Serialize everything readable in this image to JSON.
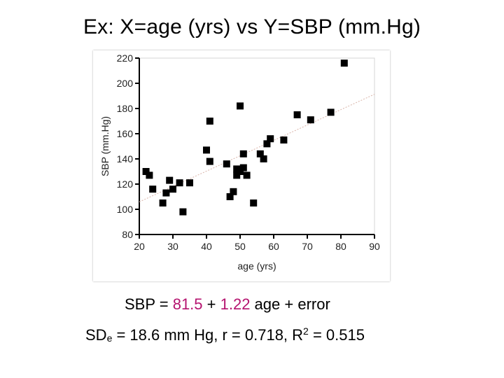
{
  "slide": {
    "title": "Ex:  X=age (yrs) vs Y=SBP (mm.Hg)"
  },
  "equation": {
    "prefix": "SBP = ",
    "intercept": "81.5",
    "plus1": " + ",
    "slope": "1.22",
    "suffix": "  age + error",
    "coef_color": "#b5136f"
  },
  "stats": {
    "sd_prefix": "SD",
    "sd_sub": "e",
    "sd_rest": " = 18.6 mm Hg, r = 0.718, R",
    "r2_sup": "2",
    "r2_rest": " = 0.515"
  },
  "chart_data": {
    "type": "scatter",
    "xlabel": "age (yrs)",
    "ylabel": "SBP (mm.Hg)",
    "xlim": [
      20,
      90
    ],
    "ylim": [
      80,
      220
    ],
    "xticks": [
      20,
      30,
      40,
      50,
      60,
      70,
      80,
      90
    ],
    "yticks": [
      80,
      100,
      120,
      140,
      160,
      180,
      200,
      220
    ],
    "grid": false,
    "regression": {
      "intercept": 81.5,
      "slope": 1.22
    },
    "points": [
      {
        "x": 22,
        "y": 130
      },
      {
        "x": 23,
        "y": 127
      },
      {
        "x": 24,
        "y": 116
      },
      {
        "x": 27,
        "y": 105
      },
      {
        "x": 28,
        "y": 113
      },
      {
        "x": 29,
        "y": 123
      },
      {
        "x": 30,
        "y": 116
      },
      {
        "x": 32,
        "y": 121
      },
      {
        "x": 33,
        "y": 98
      },
      {
        "x": 35,
        "y": 121
      },
      {
        "x": 40,
        "y": 147
      },
      {
        "x": 41,
        "y": 170
      },
      {
        "x": 41,
        "y": 138
      },
      {
        "x": 46,
        "y": 136
      },
      {
        "x": 47,
        "y": 110
      },
      {
        "x": 48,
        "y": 114
      },
      {
        "x": 49,
        "y": 127
      },
      {
        "x": 49,
        "y": 132
      },
      {
        "x": 50,
        "y": 182
      },
      {
        "x": 50,
        "y": 130
      },
      {
        "x": 51,
        "y": 133
      },
      {
        "x": 51,
        "y": 144
      },
      {
        "x": 52,
        "y": 127
      },
      {
        "x": 54,
        "y": 105
      },
      {
        "x": 56,
        "y": 144
      },
      {
        "x": 57,
        "y": 140
      },
      {
        "x": 58,
        "y": 152
      },
      {
        "x": 59,
        "y": 156
      },
      {
        "x": 63,
        "y": 155
      },
      {
        "x": 67,
        "y": 175
      },
      {
        "x": 71,
        "y": 171
      },
      {
        "x": 77,
        "y": 177
      },
      {
        "x": 81,
        "y": 216
      }
    ]
  }
}
